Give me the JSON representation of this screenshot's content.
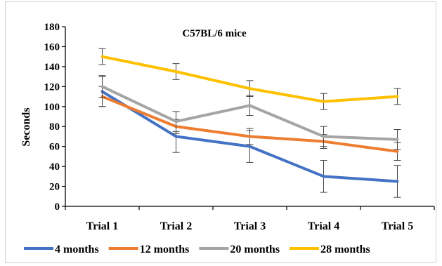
{
  "chart_data": {
    "type": "line",
    "title": "C57BL/6 mice",
    "xlabel": "",
    "ylabel": "Seconds",
    "categories": [
      "Trial 1",
      "Trial 2",
      "Trial 3",
      "Trial 4",
      "Trial 5"
    ],
    "ylim": [
      0,
      180
    ],
    "yticks": [
      "0",
      "20",
      "40",
      "60",
      "80",
      "100",
      "120",
      "140",
      "160",
      "180"
    ],
    "grid": false,
    "legend_position": "bottom",
    "series": [
      {
        "name": "4 months",
        "color": "#4472C4",
        "values": [
          115,
          70,
          60,
          30,
          25
        ],
        "error": [
          15,
          16,
          16,
          16,
          16
        ]
      },
      {
        "name": "12 months",
        "color": "#ED7D31",
        "values": [
          110,
          80,
          70,
          65,
          55
        ],
        "error": [
          10,
          7,
          8,
          7,
          9
        ]
      },
      {
        "name": "20 months",
        "color": "#A5A5A5",
        "values": [
          120,
          85,
          101,
          70,
          67
        ],
        "error": [
          11,
          10,
          10,
          10,
          10
        ]
      },
      {
        "name": "28 months",
        "color": "#FFC000",
        "values": [
          150,
          135,
          118,
          105,
          110
        ],
        "error": [
          8,
          8,
          8,
          8,
          8
        ]
      }
    ]
  }
}
